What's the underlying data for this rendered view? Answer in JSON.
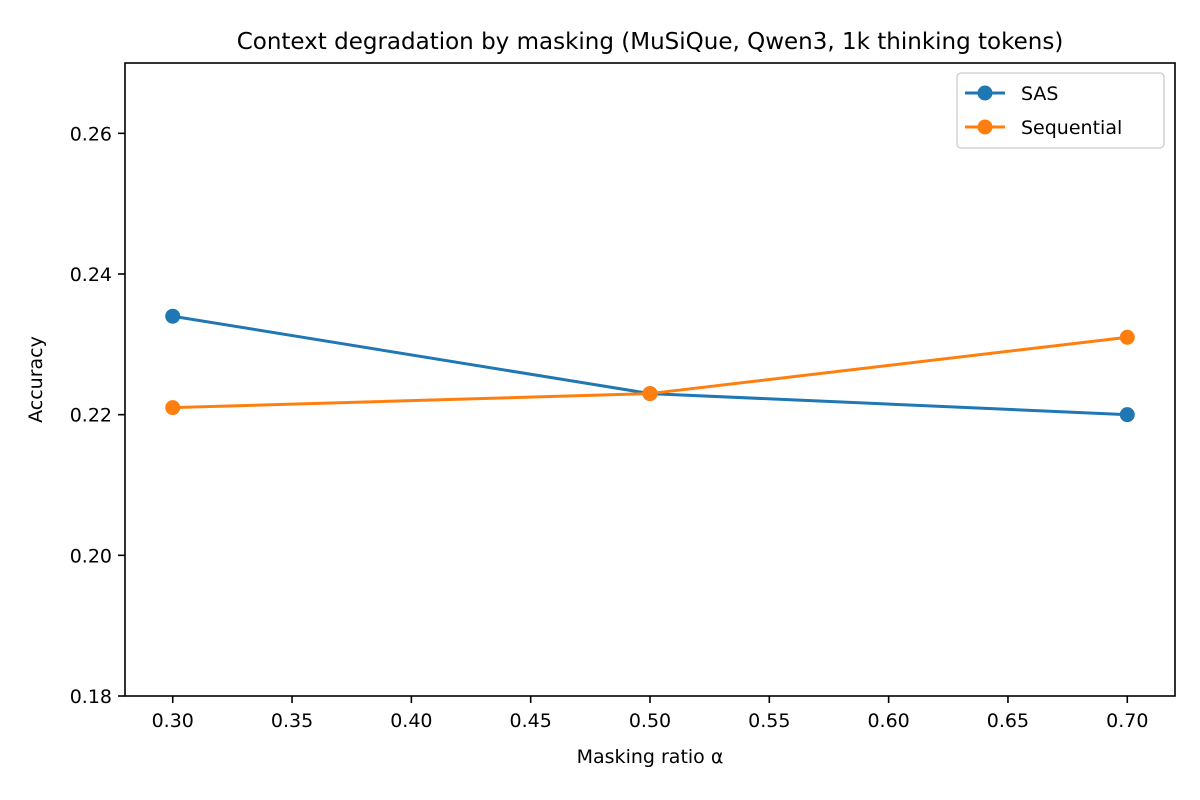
{
  "chart_data": {
    "type": "line",
    "title": "Context degradation by masking (MuSiQue, Qwen3, 1k thinking tokens)",
    "xlabel": "Masking ratio α",
    "ylabel": "Accuracy",
    "x": [
      0.3,
      0.5,
      0.7
    ],
    "xlim": [
      0.28,
      0.72
    ],
    "ylim": [
      0.18,
      0.27
    ],
    "xticks": [
      0.3,
      0.35,
      0.4,
      0.45,
      0.5,
      0.55,
      0.6,
      0.65,
      0.7
    ],
    "xtick_labels": [
      "0.30",
      "0.35",
      "0.40",
      "0.45",
      "0.50",
      "0.55",
      "0.60",
      "0.65",
      "0.70"
    ],
    "yticks": [
      0.18,
      0.2,
      0.22,
      0.24,
      0.26
    ],
    "ytick_labels": [
      "0.18",
      "0.20",
      "0.22",
      "0.24",
      "0.26"
    ],
    "grid": false,
    "legend_position": "top-right",
    "series": [
      {
        "name": "SAS",
        "values": [
          0.234,
          0.223,
          0.22
        ],
        "color": "#1f77b4",
        "marker": "circle"
      },
      {
        "name": "Sequential",
        "values": [
          0.221,
          0.223,
          0.231
        ],
        "color": "#ff7f0e",
        "marker": "circle"
      }
    ]
  }
}
